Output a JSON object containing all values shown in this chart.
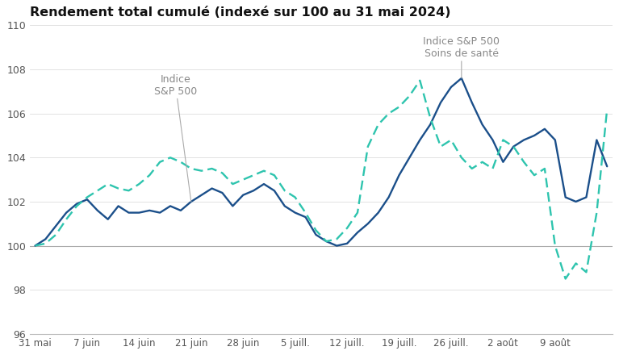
{
  "title": "Rendement total cumulé (indexé sur 100 au 31 mai 2024)",
  "title_fontsize": 11.5,
  "title_fontweight": "bold",
  "ylim": [
    96,
    110
  ],
  "yticks": [
    96,
    98,
    100,
    102,
    104,
    106,
    108,
    110
  ],
  "background_color": "#ffffff",
  "sp500_color": "#1b4f8a",
  "health_color": "#2ec4ae",
  "annotation1_text": "Indice\nS&P 500",
  "annotation2_text": "Indice S&P 500\nSoins de santé",
  "xtick_labels": [
    "31 mai",
    "7 juin",
    "14 juin",
    "21 juin",
    "28 juin",
    "5 juill.",
    "12 juill.",
    "19 juill.",
    "26 juill.",
    "2 août",
    "9 août"
  ],
  "xtick_positions": [
    0,
    5,
    10,
    15,
    20,
    25,
    30,
    35,
    40,
    45,
    50
  ],
  "xlim": [
    -0.5,
    55.5
  ],
  "sp500_values": [
    100.0,
    100.3,
    100.9,
    101.5,
    101.9,
    102.1,
    101.6,
    101.2,
    101.8,
    101.5,
    101.5,
    101.6,
    101.5,
    101.8,
    101.6,
    102.0,
    102.3,
    102.6,
    102.4,
    101.8,
    102.3,
    102.5,
    102.8,
    102.5,
    101.8,
    101.5,
    101.3,
    100.5,
    100.2,
    100.0,
    100.1,
    100.6,
    101.0,
    101.5,
    102.2,
    103.2,
    104.0,
    104.8,
    105.5,
    106.5,
    107.2,
    107.6,
    106.5,
    105.5,
    104.8,
    103.8,
    104.5,
    104.8,
    105.0,
    105.3,
    104.8,
    102.2,
    102.0,
    102.2,
    104.8,
    103.6
  ],
  "health_values": [
    100.0,
    100.1,
    100.5,
    101.2,
    101.8,
    102.2,
    102.5,
    102.8,
    102.6,
    102.5,
    102.8,
    103.2,
    103.8,
    104.0,
    103.8,
    103.5,
    103.4,
    103.5,
    103.3,
    102.8,
    103.0,
    103.2,
    103.4,
    103.2,
    102.5,
    102.2,
    101.5,
    100.7,
    100.2,
    100.3,
    100.8,
    101.5,
    104.5,
    105.5,
    106.0,
    106.3,
    106.8,
    107.5,
    105.8,
    104.5,
    104.8,
    104.0,
    103.5,
    103.8,
    103.5,
    104.8,
    104.5,
    103.8,
    103.2,
    103.5,
    100.0,
    98.5,
    99.2,
    98.8,
    101.5,
    106.2
  ]
}
